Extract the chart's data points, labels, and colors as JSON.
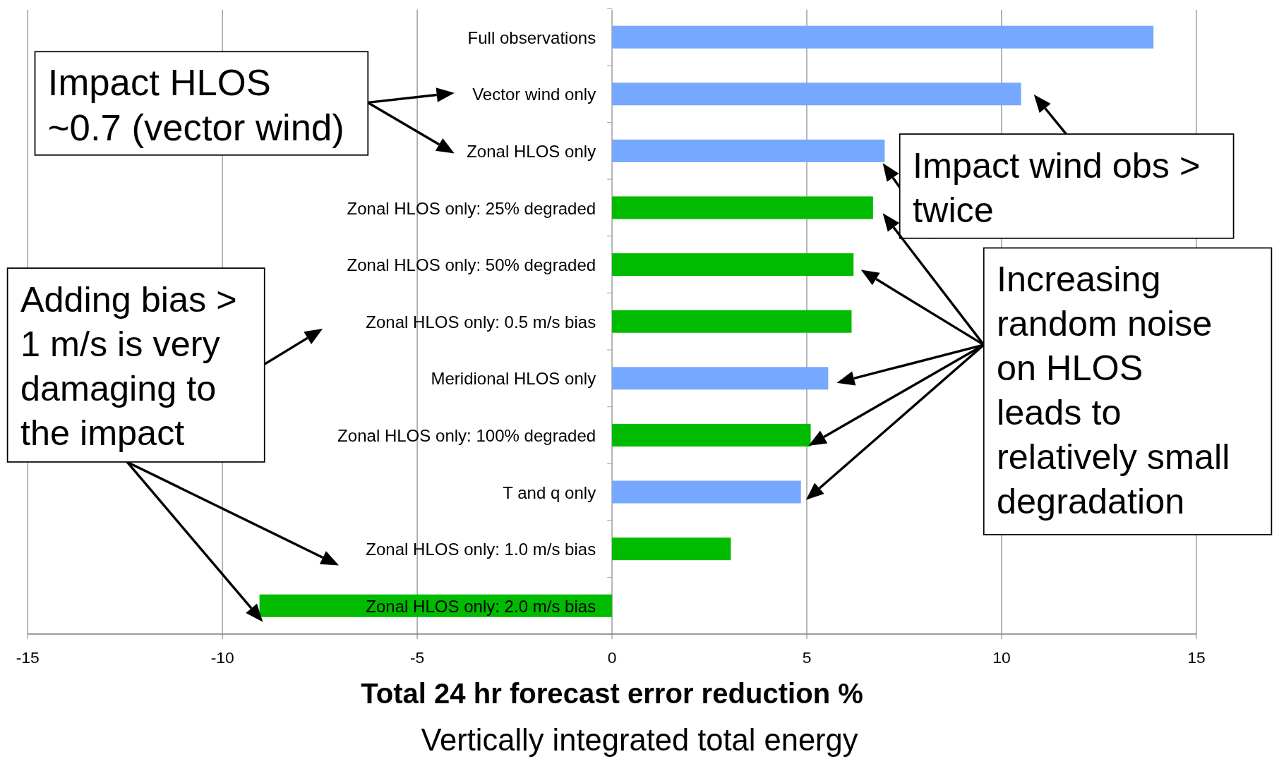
{
  "chart_data": {
    "type": "bar",
    "orientation": "horizontal",
    "xlabel": "Total 24 hr forecast error reduction %",
    "subtitle": "Vertically integrated total energy",
    "categories": [
      "Full observations",
      "Vector wind only",
      "Zonal HLOS only",
      "Zonal HLOS only: 25% degraded",
      "Zonal HLOS only: 50% degraded",
      "Zonal HLOS only: 0.5 m/s bias",
      "Meridional HLOS only",
      "Zonal HLOS only: 100% degraded",
      "T and q only",
      "Zonal HLOS only: 1.0 m/s bias",
      "Zonal HLOS only: 2.0 m/s bias"
    ],
    "values": [
      13.9,
      10.5,
      7.0,
      6.7,
      6.2,
      6.15,
      5.55,
      5.1,
      4.85,
      3.05,
      -9.05
    ],
    "colors": [
      "#77a8ff",
      "#77a8ff",
      "#77a8ff",
      "#00bb00",
      "#00bb00",
      "#00bb00",
      "#77a8ff",
      "#00bb00",
      "#77a8ff",
      "#00bb00",
      "#00bb00"
    ],
    "xlim": [
      -15,
      15
    ],
    "xticks": [
      -15,
      -10,
      -5,
      0,
      5,
      10,
      15
    ],
    "grid": "x",
    "annotations": [
      "Impact HLOS\n~0.7 (vector wind)",
      "Adding bias >\n1 m/s is very\ndamaging to\nthe impact",
      "Impact wind obs >\ntwice",
      "Increasing\nrandom noise\non HLOS\nleads to\nrelatively small\ndegradation"
    ]
  }
}
